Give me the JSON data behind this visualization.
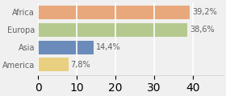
{
  "categories": [
    "Africa",
    "Europa",
    "Asia",
    "America"
  ],
  "values": [
    39.2,
    38.6,
    14.4,
    7.8
  ],
  "labels": [
    "39,2%",
    "38,6%",
    "14,4%",
    "7,8%"
  ],
  "bar_colors": [
    "#e8a87c",
    "#b5c98e",
    "#6b8cba",
    "#e8d080"
  ],
  "background_color": "#f0f0f0",
  "label_fontsize": 7.0,
  "tick_fontsize": 7.0,
  "bar_height": 0.78,
  "xlim": [
    0,
    48
  ],
  "grid_color": "#ffffff",
  "grid_lw": 1.2,
  "label_color": "#606060",
  "tick_color": "#606060"
}
